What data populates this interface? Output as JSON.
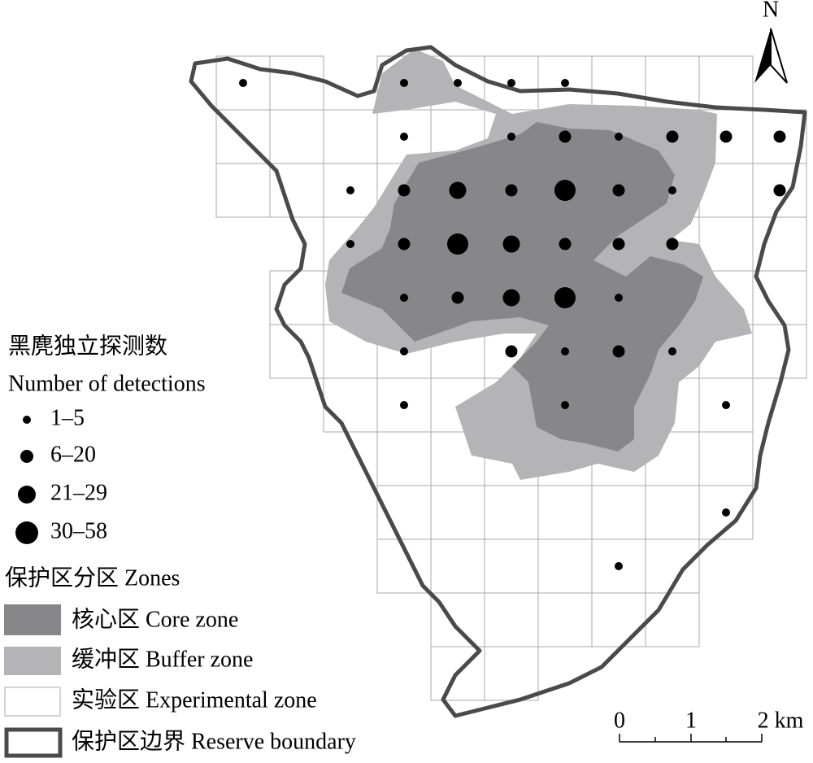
{
  "north": "N",
  "legend": {
    "title_cn": "黑麂独立探测数",
    "title_en": "Number of detections",
    "classes": [
      "1–5",
      "6–20",
      "21–29",
      "30–58"
    ]
  },
  "zones": {
    "title": "保护区分区 Zones",
    "items": [
      "核心区 Core zone",
      "缓冲区 Buffer zone",
      "实验区 Experimental zone",
      "保护区边界 Reserve boundary"
    ]
  },
  "scale": {
    "labels": [
      "0",
      "1",
      "2 km"
    ]
  }
}
